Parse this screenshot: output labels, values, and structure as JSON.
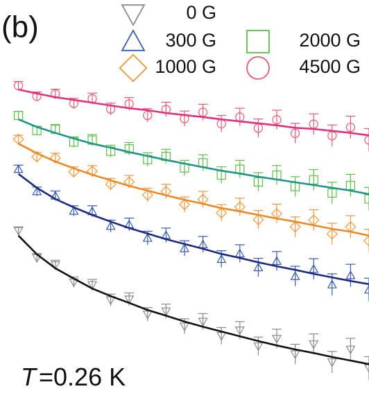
{
  "chart_data": {
    "type": "scatter",
    "panel_label": "(b)",
    "annotation_symbol": "T",
    "annotation_text": "=0.26 K",
    "x": [
      0.5,
      1,
      1.5,
      2,
      2.5,
      3,
      3.5,
      4,
      4.5,
      5,
      5.5,
      6,
      6.5,
      7,
      7.5,
      8,
      8.5,
      9,
      9.5,
      10
    ],
    "xlim": [
      0,
      10
    ],
    "ylim": [
      0,
      100
    ],
    "series": [
      {
        "name": "0 G",
        "color": "#8a8a8a",
        "fit_color": "#111111",
        "marker": "triangle-down",
        "values": [
          42.0,
          35.2,
          33.4,
          29.1,
          28.4,
          24.6,
          24.8,
          21.0,
          21.8,
          18.0,
          19.2,
          15.6,
          17.0,
          13.0,
          14.9,
          11.0,
          13.5,
          9.0,
          12.2,
          7.5
        ],
        "errors": [
          1.0,
          1.1,
          1.2,
          1.3,
          1.4,
          1.5,
          1.6,
          1.7,
          1.8,
          1.9,
          2.0,
          2.1,
          2.2,
          2.3,
          2.4,
          2.5,
          2.6,
          2.7,
          2.8,
          2.9
        ],
        "fit": [
          40.8,
          36.1,
          32.6,
          30.0,
          27.5,
          25.6,
          23.9,
          22.1,
          20.7,
          19.2,
          17.9,
          16.7,
          15.5,
          14.3,
          13.2,
          12.2,
          11.3,
          10.3,
          9.4,
          8.5
        ]
      },
      {
        "name": "300 G",
        "color": "#3558b0",
        "fit_color": "#1b2a80",
        "marker": "triangle-up",
        "values": [
          57.5,
          51.9,
          50.8,
          47.0,
          46.9,
          43.2,
          43.6,
          40.2,
          40.9,
          37.6,
          38.6,
          34.9,
          36.3,
          32.8,
          34.4,
          30.6,
          32.4,
          28.5,
          30.8,
          27.2
        ],
        "errors": [
          1.0,
          1.1,
          1.2,
          1.3,
          1.4,
          1.5,
          1.6,
          1.7,
          1.8,
          1.9,
          2.0,
          2.1,
          2.2,
          2.3,
          2.4,
          2.5,
          2.6,
          2.7,
          2.8,
          2.9
        ],
        "fit": [
          56.3,
          52.8,
          50.0,
          47.9,
          46.0,
          44.3,
          42.7,
          41.3,
          39.9,
          38.7,
          37.5,
          36.2,
          35.2,
          34.1,
          33.1,
          32.2,
          31.2,
          30.3,
          29.4,
          28.6
        ]
      },
      {
        "name": "1000 G",
        "color": "#f0963a",
        "fit_color": "#ea8a26",
        "marker": "diamond",
        "values": [
          65.0,
          60.6,
          60.3,
          56.8,
          57.0,
          53.7,
          54.3,
          51.0,
          51.9,
          48.6,
          49.9,
          46.5,
          48.0,
          44.8,
          46.3,
          43.0,
          44.7,
          41.2,
          43.0,
          39.5
        ],
        "errors": [
          1.0,
          1.1,
          1.2,
          1.3,
          1.4,
          1.5,
          1.6,
          1.7,
          1.8,
          1.9,
          2.0,
          2.1,
          2.2,
          2.3,
          2.4,
          2.5,
          2.6,
          2.7,
          2.8,
          2.9
        ],
        "fit": [
          63.9,
          61.5,
          59.4,
          57.7,
          56.1,
          54.7,
          53.3,
          52.1,
          50.9,
          49.8,
          48.8,
          47.7,
          46.9,
          46.0,
          45.1,
          44.3,
          43.4,
          42.5,
          41.8,
          40.8
        ]
      },
      {
        "name": "2000 G",
        "color": "#5cbf4a",
        "fit_color": "#1f9488",
        "marker": "square",
        "values": [
          71.0,
          67.2,
          67.5,
          64.3,
          64.8,
          62.0,
          62.6,
          59.9,
          60.7,
          57.8,
          59.1,
          56.0,
          57.5,
          54.3,
          56.0,
          53.1,
          54.8,
          51.5,
          53.4,
          50.0
        ],
        "errors": [
          1.0,
          1.1,
          1.2,
          1.3,
          1.4,
          1.5,
          1.6,
          1.7,
          1.8,
          1.9,
          2.0,
          2.1,
          2.2,
          2.3,
          2.4,
          2.5,
          2.6,
          2.7,
          2.8,
          2.9
        ],
        "fit": [
          70.0,
          68.1,
          66.6,
          65.2,
          63.9,
          62.9,
          61.8,
          60.8,
          59.8,
          58.9,
          58.0,
          57.1,
          56.4,
          55.6,
          54.9,
          54.2,
          53.5,
          52.8,
          52.1,
          51.2
        ]
      },
      {
        "name": "4500 G",
        "color": "#e85a70",
        "fit_color": "#e0307e",
        "marker": "circle",
        "values": [
          78.5,
          75.8,
          76.4,
          74.0,
          75.2,
          72.6,
          73.9,
          71.0,
          72.5,
          70.2,
          71.8,
          68.9,
          70.6,
          67.8,
          69.9,
          66.5,
          68.8,
          65.9,
          68.0,
          64.8
        ],
        "errors": [
          1.0,
          1.1,
          1.2,
          1.3,
          1.4,
          1.5,
          1.6,
          1.7,
          1.8,
          1.9,
          2.0,
          2.1,
          2.2,
          2.3,
          2.4,
          2.5,
          2.6,
          2.7,
          2.8,
          2.9
        ],
        "fit": [
          77.5,
          76.5,
          75.6,
          74.9,
          74.2,
          73.5,
          72.8,
          72.3,
          71.6,
          71.1,
          70.6,
          70.0,
          69.5,
          69.0,
          68.5,
          67.9,
          67.6,
          67.1,
          66.6,
          66.0
        ]
      }
    ]
  }
}
